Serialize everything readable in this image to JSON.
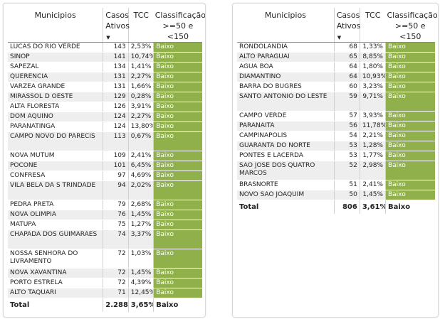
{
  "colors": {
    "classification_fill": "#8fb04a",
    "row_stripe": "#eeeeee",
    "header_rule": "#8a8a8a"
  },
  "left_table": {
    "headers": {
      "municipios": "Municipios",
      "casos": "Casos Ativos",
      "tcc": "TCC",
      "classificacao": "Classificação >=50 e <150"
    },
    "sort_icon": "sort-descending-icon",
    "rows": [
      {
        "municipio": "LUCAS DO RIO VERDE",
        "casos": "143",
        "tcc": "2,53%",
        "classe": "Baixo"
      },
      {
        "municipio": "SINOP",
        "casos": "141",
        "tcc": "10,74%",
        "classe": "Baixo"
      },
      {
        "municipio": "SAPEZAL",
        "casos": "134",
        "tcc": "1,41%",
        "classe": "Baixo"
      },
      {
        "municipio": "QUERENCIA",
        "casos": "131",
        "tcc": "2,27%",
        "classe": "Baixo"
      },
      {
        "municipio": "VARZEA GRANDE",
        "casos": "131",
        "tcc": "1,66%",
        "classe": "Baixo"
      },
      {
        "municipio": "MIRASSOL D OESTE",
        "casos": "129",
        "tcc": "0,28%",
        "classe": "Baixo"
      },
      {
        "municipio": "ALTA FLORESTA",
        "casos": "126",
        "tcc": "3,91%",
        "classe": "Baixo"
      },
      {
        "municipio": "DOM AQUINO",
        "casos": "124",
        "tcc": "2,27%",
        "classe": "Baixo"
      },
      {
        "municipio": "PARANATINGA",
        "casos": "124",
        "tcc": "13,80%",
        "classe": "Baixo"
      },
      {
        "municipio": "CAMPO NOVO DO PARECIS",
        "casos": "113",
        "tcc": "0,67%",
        "classe": "Baixo"
      },
      {
        "municipio": "NOVA MUTUM",
        "casos": "109",
        "tcc": "2,41%",
        "classe": "Baixo"
      },
      {
        "municipio": "POCONE",
        "casos": "101",
        "tcc": "6,45%",
        "classe": "Baixo"
      },
      {
        "municipio": "CONFRESA",
        "casos": "97",
        "tcc": "4,69%",
        "classe": "Baixo"
      },
      {
        "municipio": "VILA BELA DA S TRINDADE",
        "casos": "94",
        "tcc": "2,02%",
        "classe": "Baixo"
      },
      {
        "municipio": "PEDRA PRETA",
        "casos": "79",
        "tcc": "2,68%",
        "classe": "Baixo"
      },
      {
        "municipio": "NOVA OLIMPIA",
        "casos": "76",
        "tcc": "1,45%",
        "classe": "Baixo"
      },
      {
        "municipio": "MATUPA",
        "casos": "75",
        "tcc": "1,27%",
        "classe": "Baixo"
      },
      {
        "municipio": "CHAPADA DOS GUIMARAES",
        "casos": "74",
        "tcc": "3,37%",
        "classe": "Baixo"
      },
      {
        "municipio": "NOSSA SENHORA DO LIVRAMENTO",
        "casos": "72",
        "tcc": "1,03%",
        "classe": "Baixo"
      },
      {
        "municipio": "NOVA XAVANTINA",
        "casos": "72",
        "tcc": "1,45%",
        "classe": "Baixo"
      },
      {
        "municipio": "PORTO ESTRELA",
        "casos": "72",
        "tcc": "4,39%",
        "classe": "Baixo"
      },
      {
        "municipio": "ALTO TAQUARI",
        "casos": "71",
        "tcc": "12,45%",
        "classe": "Baixo"
      }
    ],
    "total": {
      "label": "Total",
      "casos": "2.288",
      "tcc": "3,65%",
      "classe": "Baixo"
    }
  },
  "right_table": {
    "headers": {
      "municipios": "Municipios",
      "casos": "Casos Ativos",
      "tcc": "TCC",
      "classificacao": "Classificação >=50 e <150"
    },
    "sort_icon": "sort-descending-icon",
    "rows": [
      {
        "municipio": "RONDOLANDIA",
        "casos": "68",
        "tcc": "1,33%",
        "classe": "Baixo"
      },
      {
        "municipio": "ALTO PARAGUAI",
        "casos": "65",
        "tcc": "8,85%",
        "classe": "Baixo"
      },
      {
        "municipio": "AGUA BOA",
        "casos": "64",
        "tcc": "1,80%",
        "classe": "Baixo"
      },
      {
        "municipio": "DIAMANTINO",
        "casos": "64",
        "tcc": "10,93%",
        "classe": "Baixo"
      },
      {
        "municipio": "BARRA DO BUGRES",
        "casos": "60",
        "tcc": "3,23%",
        "classe": "Baixo"
      },
      {
        "municipio": "SANTO ANTONIO DO LESTE",
        "casos": "59",
        "tcc": "9,71%",
        "classe": "Baixo"
      },
      {
        "municipio": "CAMPO VERDE",
        "casos": "57",
        "tcc": "3,93%",
        "classe": "Baixo"
      },
      {
        "municipio": "PARANAITA",
        "casos": "56",
        "tcc": "11,78%",
        "classe": "Baixo"
      },
      {
        "municipio": "CAMPINAPOLIS",
        "casos": "54",
        "tcc": "2,21%",
        "classe": "Baixo"
      },
      {
        "municipio": "GUARANTA DO NORTE",
        "casos": "53",
        "tcc": "1,28%",
        "classe": "Baixo"
      },
      {
        "municipio": "PONTES E LACERDA",
        "casos": "53",
        "tcc": "1,77%",
        "classe": "Baixo"
      },
      {
        "municipio": "SAO JOSE DOS QUATRO MARCOS",
        "casos": "52",
        "tcc": "2,98%",
        "classe": "Baixo"
      },
      {
        "municipio": "BRASNORTE",
        "casos": "51",
        "tcc": "2,41%",
        "classe": "Baixo"
      },
      {
        "municipio": "NOVO SAO JOAQUIM",
        "casos": "50",
        "tcc": "1,45%",
        "classe": "Baixo"
      }
    ],
    "total": {
      "label": "Total",
      "casos": "806",
      "tcc": "3,61%",
      "classe": "Baixo"
    }
  }
}
